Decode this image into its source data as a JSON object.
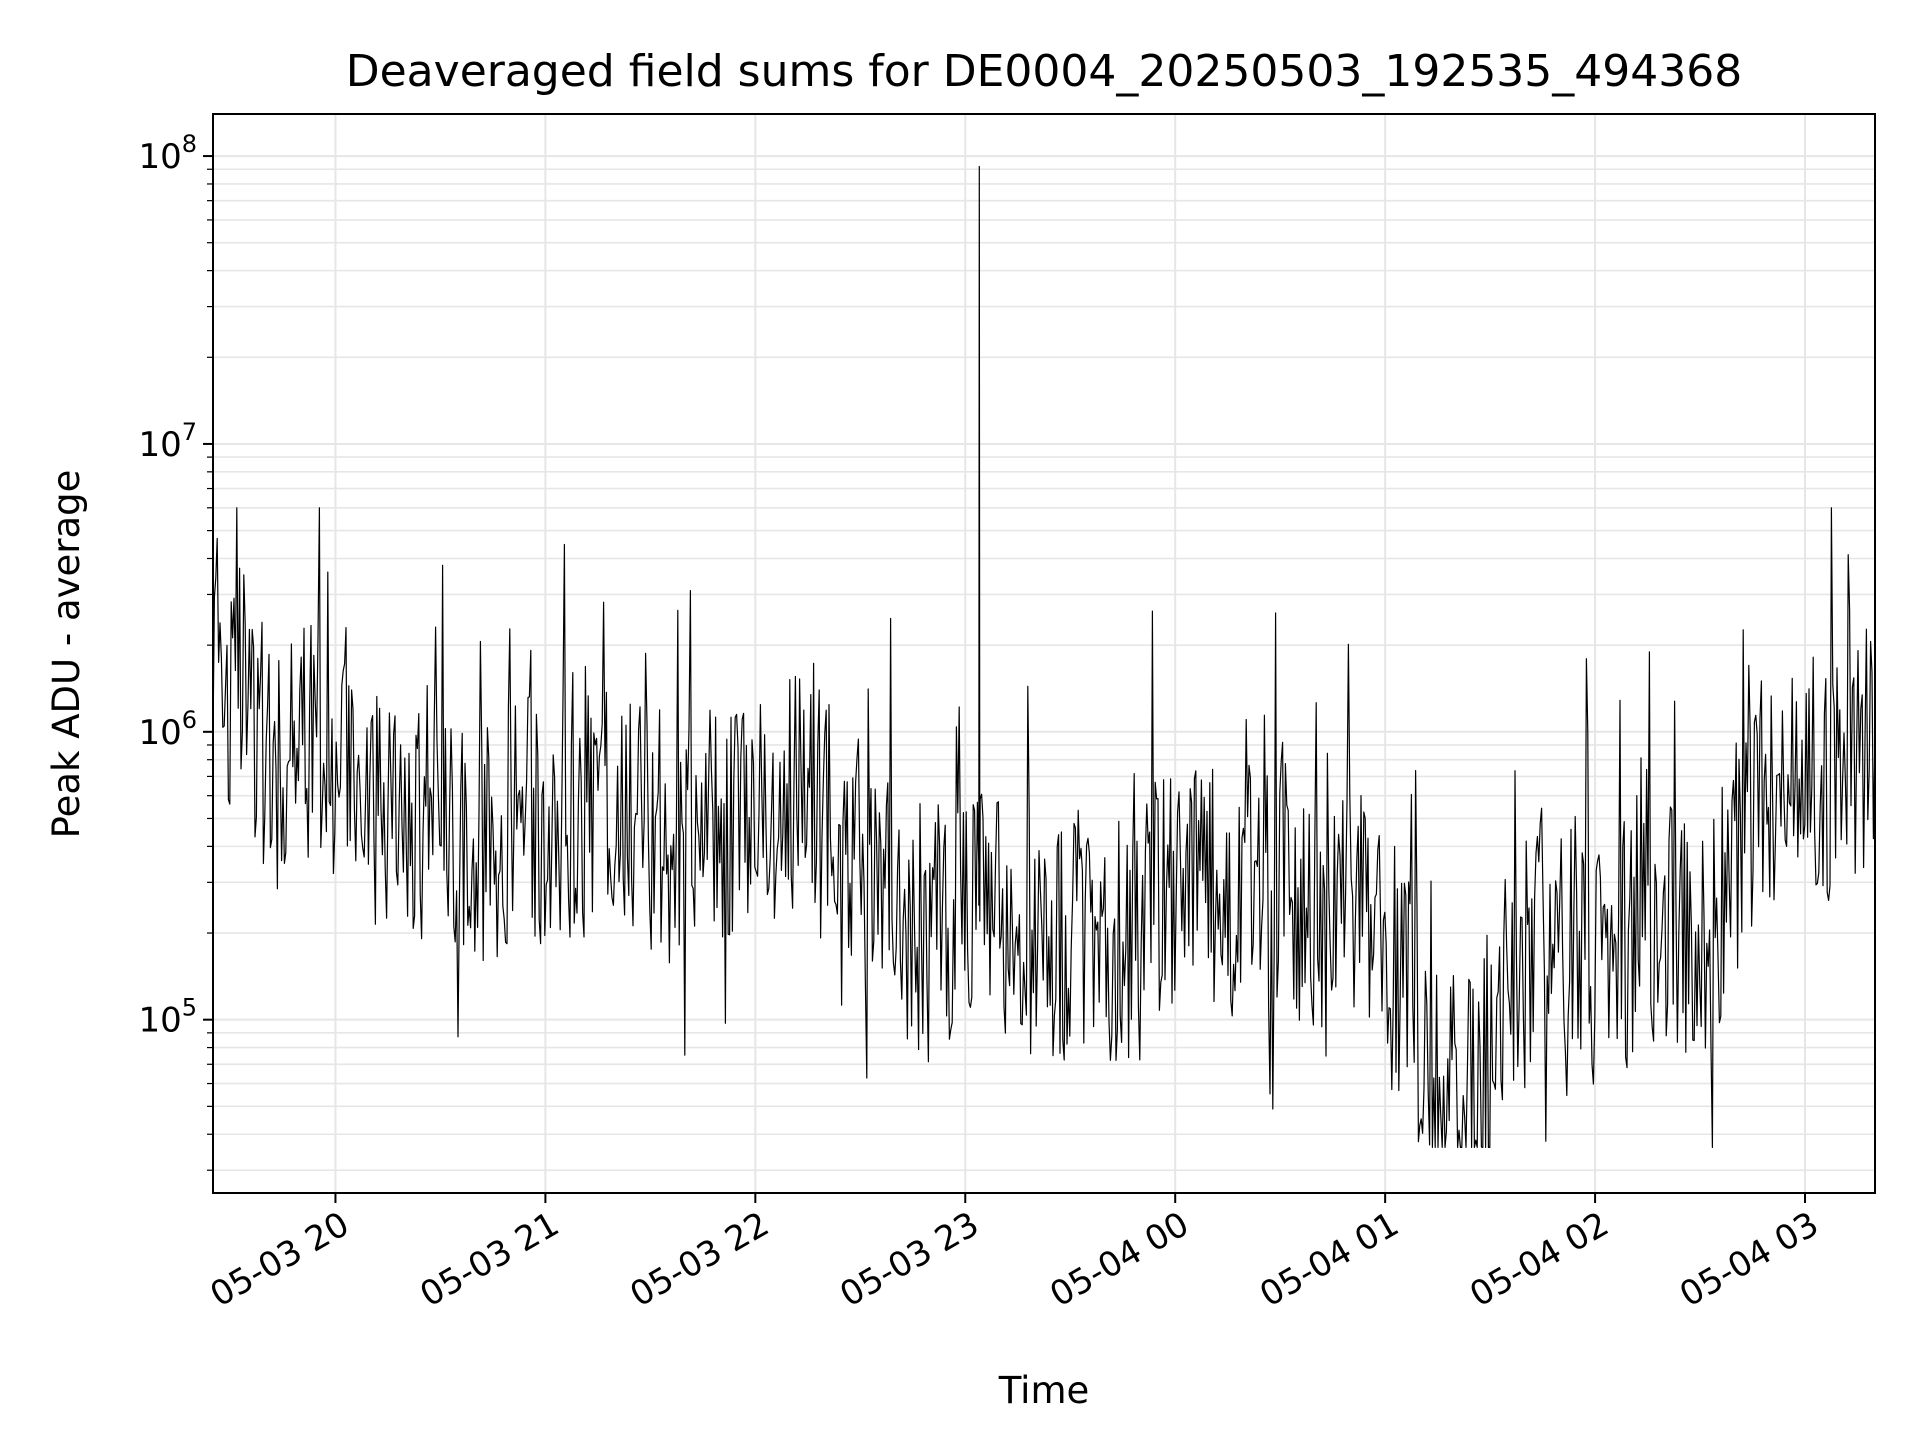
{
  "chart_data": {
    "type": "line",
    "title": "Deaveraged field sums for DE0004_20250503_192535_494368",
    "xlabel": "Time",
    "ylabel": "Peak ADU - average",
    "x_ticks": [
      "05-03 20",
      "05-03 21",
      "05-03 22",
      "05-03 23",
      "05-04 00",
      "05-04 01",
      "05-04 02",
      "05-04 03"
    ],
    "y_ticks": [
      {
        "base": "10",
        "exp": "5",
        "value": 100000
      },
      {
        "base": "10",
        "exp": "6",
        "value": 1000000
      },
      {
        "base": "10",
        "exp": "7",
        "value": 10000000
      },
      {
        "base": "10",
        "exp": "8",
        "value": 100000000
      }
    ],
    "xlim": [
      "2025-05-03 19:25",
      "2025-05-04 03:20"
    ],
    "ylim": [
      25000,
      140000000
    ],
    "yscale": "log",
    "grid": true,
    "line_color": "#000000",
    "grid_color": "#e6e6e6",
    "series": [
      {
        "x": [
          "2025-05-03 19:25",
          "2025-05-03 19:35",
          "2025-05-03 19:45",
          "2025-05-03 19:55",
          "2025-05-03 20:05",
          "2025-05-03 20:15",
          "2025-05-03 20:25",
          "2025-05-03 20:35",
          "2025-05-03 20:45",
          "2025-05-03 20:55",
          "2025-05-03 21:05",
          "2025-05-03 21:15",
          "2025-05-03 21:25",
          "2025-05-03 21:35",
          "2025-05-03 21:45",
          "2025-05-03 21:55",
          "2025-05-03 22:05",
          "2025-05-03 22:15",
          "2025-05-03 22:25",
          "2025-05-03 22:35",
          "2025-05-03 22:45",
          "2025-05-03 22:55",
          "2025-05-03 23:05",
          "2025-05-03 23:15",
          "2025-05-03 23:25",
          "2025-05-03 23:35",
          "2025-05-03 23:45",
          "2025-05-03 23:55",
          "2025-05-04 00:05",
          "2025-05-04 00:15",
          "2025-05-04 00:25",
          "2025-05-04 00:35",
          "2025-05-04 00:45",
          "2025-05-04 00:55",
          "2025-05-04 01:05",
          "2025-05-04 01:15",
          "2025-05-04 01:25",
          "2025-05-04 01:35",
          "2025-05-04 01:45",
          "2025-05-04 01:55",
          "2025-05-04 02:05",
          "2025-05-04 02:15",
          "2025-05-04 02:25",
          "2025-05-04 02:35",
          "2025-05-04 02:45",
          "2025-05-04 02:55",
          "2025-05-04 03:05",
          "2025-05-04 03:15",
          "2025-05-04 03:20"
        ],
        "y": [
          2000000,
          1200000,
          700000,
          900000,
          800000,
          600000,
          500000,
          400000,
          450000,
          500000,
          550000,
          500000,
          450000,
          420000,
          450000,
          500000,
          550000,
          600000,
          450000,
          300000,
          200000,
          200000,
          250000,
          220000,
          200000,
          210000,
          190000,
          250000,
          350000,
          250000,
          300000,
          280000,
          250000,
          220000,
          150000,
          60000,
          50000,
          120000,
          200000,
          180000,
          150000,
          250000,
          180000,
          200000,
          600000,
          700000,
          650000,
          900000,
          1000000
        ]
      }
    ],
    "annotations": [
      {
        "x": "2025-05-03 23:04",
        "y": 92000000,
        "label": ""
      }
    ]
  }
}
